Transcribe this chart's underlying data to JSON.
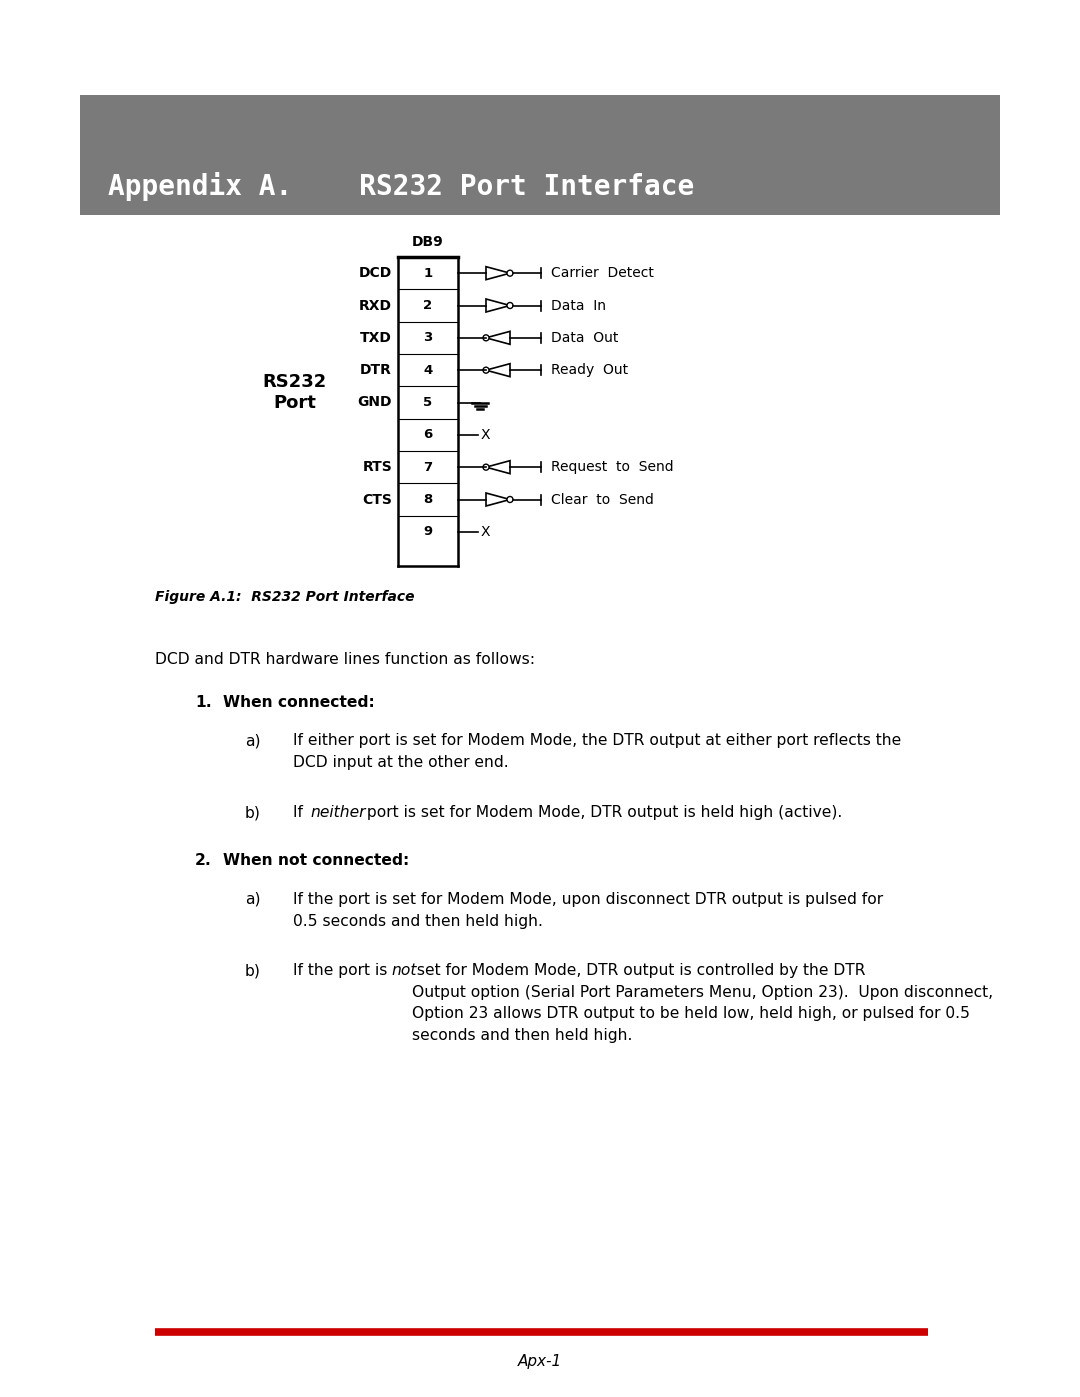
{
  "page_bg": "#ffffff",
  "header_bg": "#7a7a7a",
  "header_text": "Appendix A.    RS232 Port Interface",
  "header_text_color": "#ffffff",
  "header_font_size": 20,
  "figure_caption": "Figure A.1:  RS232 Port Interface",
  "db9_label": "DB9",
  "rs232_label": "RS232\nPort",
  "pins": [
    {
      "num": "1",
      "signal": "DCD",
      "desc": "Carrier  Detect",
      "type": "out"
    },
    {
      "num": "2",
      "signal": "RXD",
      "desc": "Data  In",
      "type": "out"
    },
    {
      "num": "3",
      "signal": "TXD",
      "desc": "Data  Out",
      "type": "in"
    },
    {
      "num": "4",
      "signal": "DTR",
      "desc": "Ready  Out",
      "type": "in"
    },
    {
      "num": "5",
      "signal": "GND",
      "desc": null,
      "type": "gnd"
    },
    {
      "num": "6",
      "signal": null,
      "desc": null,
      "type": "x"
    },
    {
      "num": "7",
      "signal": "RTS",
      "desc": "Request  to  Send",
      "type": "in"
    },
    {
      "num": "8",
      "signal": "CTS",
      "desc": "Clear  to  Send",
      "type": "out"
    },
    {
      "num": "9",
      "signal": null,
      "desc": null,
      "type": "x"
    }
  ],
  "body_text_intro": "DCD and DTR hardware lines function as follows:",
  "footer_line_color": "#cc0000",
  "footer_text": "Apx-1"
}
